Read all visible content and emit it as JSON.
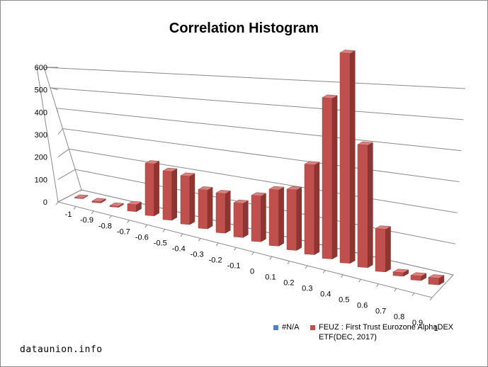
{
  "chart_data": {
    "type": "bar",
    "title": "Correlation Histogram",
    "categories": [
      "-1",
      "-0.9",
      "-0.8",
      "-0.7",
      "-0.6",
      "-0.5",
      "-0.4",
      "-0.3",
      "-0.2",
      "-0.1",
      "0",
      "0.1",
      "0.2",
      "0.3",
      "0.4",
      "0.5",
      "0.6",
      "0.7",
      "0.8",
      "0.9",
      "1"
    ],
    "series": [
      {
        "name": "#N/A",
        "color": "#4f81bd",
        "values": [
          0,
          0,
          0,
          0,
          0,
          0,
          0,
          0,
          0,
          0,
          0,
          0,
          0,
          0,
          0,
          0,
          0,
          0,
          0,
          0,
          0
        ]
      },
      {
        "name": "FEUZ : First Trust Eurozone AlphaDEX ETF(DEC, 2017)",
        "color": "#c0504d",
        "values": [
          2,
          5,
          4,
          25,
          185,
          170,
          165,
          130,
          130,
          110,
          145,
          175,
          185,
          270,
          475,
          610,
          350,
          120,
          10,
          12,
          18
        ]
      }
    ],
    "y_ticks": [
      "0",
      "100",
      "200",
      "300",
      "400",
      "500",
      "600"
    ],
    "ylim": [
      0,
      600
    ],
    "grid": true,
    "legend_position": "bottom-right"
  },
  "watermark": "dataunion.info"
}
